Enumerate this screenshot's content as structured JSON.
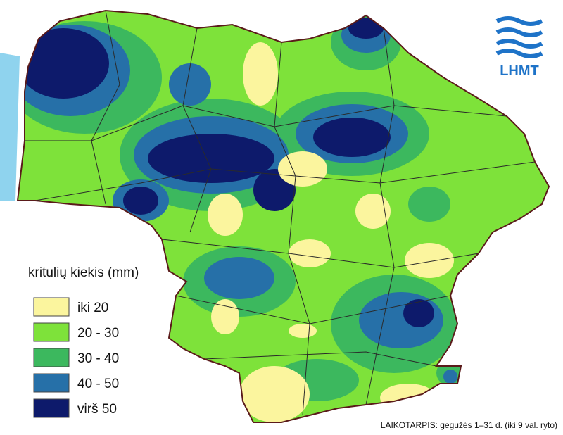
{
  "legend": {
    "title": "kritulių kiekis (mm)",
    "items": [
      {
        "label": "iki 20",
        "color": "#fbf59e"
      },
      {
        "label": "20 - 30",
        "color": "#7ee23a"
      },
      {
        "label": "30 - 40",
        "color": "#3cb85e"
      },
      {
        "label": "40 - 50",
        "color": "#2670a8"
      },
      {
        "label": "virš 50",
        "color": "#0d1a6b"
      }
    ]
  },
  "logo": {
    "text": "LHMT"
  },
  "period": "LAIKOTARPIS: gegužės 1–31 d. (iki 9 val. ryto)"
}
